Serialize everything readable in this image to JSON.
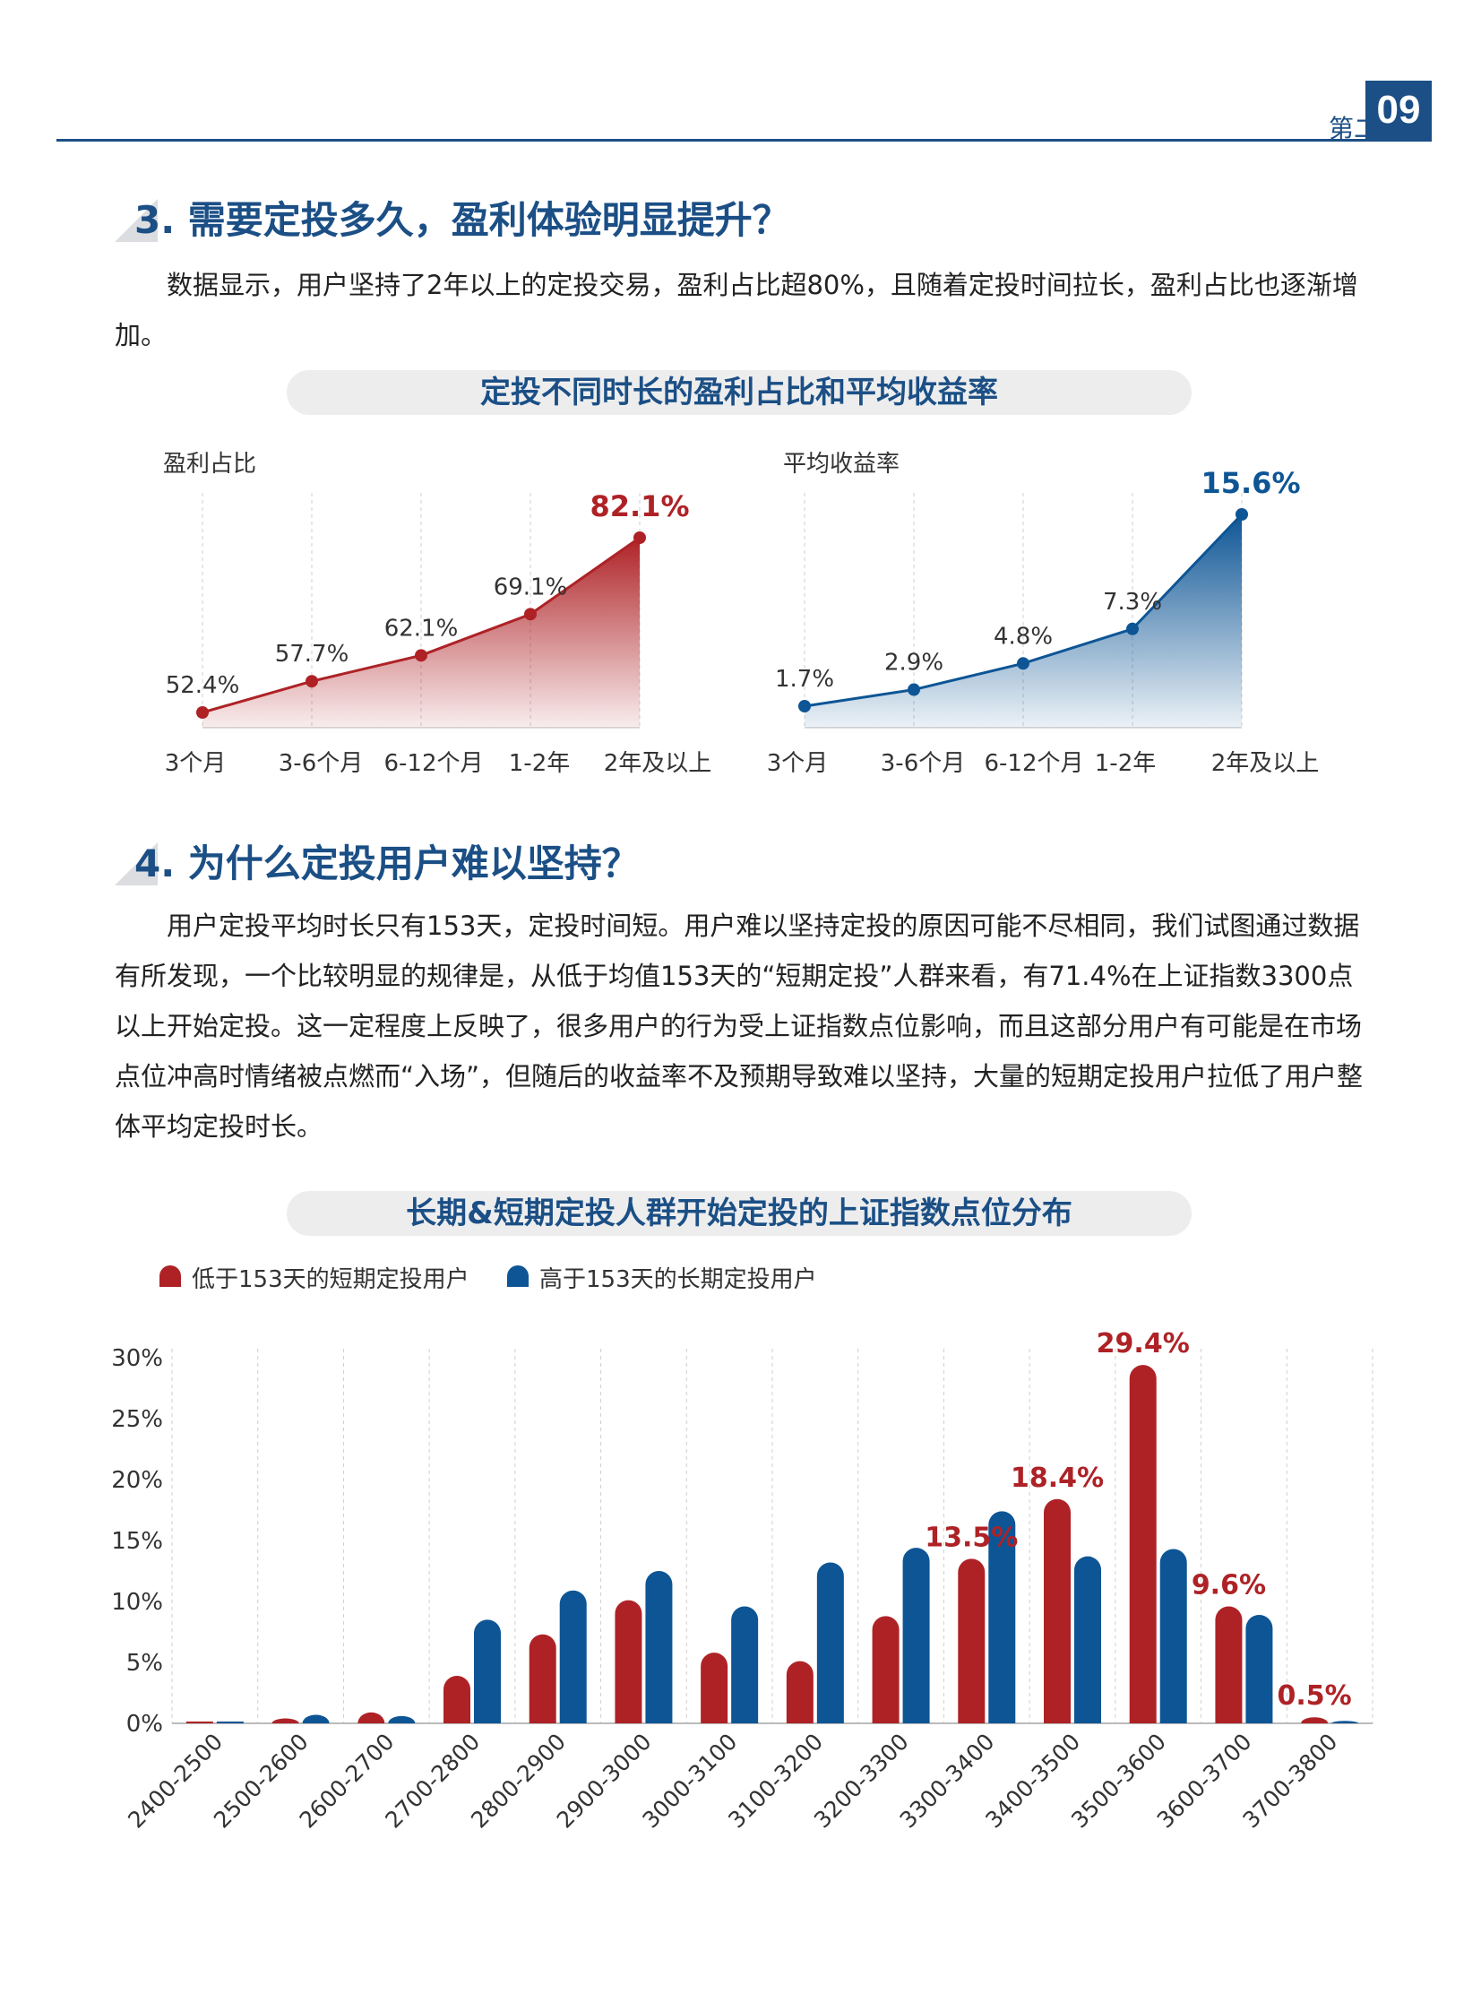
{
  "header": {
    "chapter": "第二章",
    "page_number": "09"
  },
  "section3": {
    "title": "3. 需要定投多久，盈利体验明显提升？",
    "para": "数据显示，用户坚持了2年以上的定投交易，盈利占比超80%，且随着定投时间拉长，盈利占比也逐渐增加。"
  },
  "chart1_title": "定投不同时长的盈利占比和平均收益率",
  "section4": {
    "title": "4. 为什么定投用户难以坚持？",
    "para": "用户定投平均时长只有153天，定投时间短。用户难以坚持定投的原因可能不尽相同，我们试图通过数据有所发现，一个比较明显的规律是，从低于均值153天的“短期定投”人群来看，有71.4%在上证指数3300点以上开始定投。这一定程度上反映了，很多用户的行为受上证指数点位影响，而且这部分用户有可能是在市场点位冲高时情绪被点燃而“入场”，但随后的收益率不及预期导致难以坚持，大量的短期定投用户拉低了用户整体平均定投时长。"
  },
  "chart2_title": "长期&短期定投人群开始定投的上证指数点位分布",
  "colors": {
    "red": "#ae2226",
    "blue": "#0d5595",
    "navy": "#1b4f85"
  },
  "chart_data": [
    {
      "type": "area",
      "ylabel": "盈利占比",
      "categories": [
        "3个月",
        "3-6个月",
        "6-12个月",
        "1-2年",
        "2年及以上"
      ],
      "values": [
        52.4,
        57.7,
        62.1,
        69.1,
        82.1
      ],
      "value_labels": [
        "52.4%",
        "57.7%",
        "62.1%",
        "69.1%",
        "82.1%"
      ],
      "color": "#ae2226"
    },
    {
      "type": "area",
      "ylabel": "平均收益率",
      "categories": [
        "3个月",
        "3-6个月",
        "6-12个月",
        "1-2年",
        "2年及以上"
      ],
      "values": [
        1.7,
        2.9,
        4.8,
        7.3,
        15.6
      ],
      "value_labels": [
        "1.7%",
        "2.9%",
        "4.8%",
        "7.3%",
        "15.6%"
      ],
      "color": "#0d5595"
    },
    {
      "type": "bar",
      "categories": [
        "2400-2500",
        "2500-2600",
        "2600-2700",
        "2700-2800",
        "2800-2900",
        "2900-3000",
        "3000-3100",
        "3100-3200",
        "3200-3300",
        "3300-3400",
        "3400-3500",
        "3500-3600",
        "3600-3700",
        "3700-3800"
      ],
      "series": [
        {
          "name": "低于153天的短期定投用户",
          "color": "#ae2226",
          "values": [
            0.0,
            0.4,
            0.9,
            3.9,
            7.3,
            10.1,
            5.8,
            5.1,
            8.8,
            13.5,
            18.4,
            29.4,
            9.6,
            0.5
          ]
        },
        {
          "name": "高于153天的长期定投用户",
          "color": "#0d5595",
          "values": [
            0.0,
            0.7,
            0.6,
            8.5,
            10.9,
            12.5,
            9.6,
            13.2,
            14.4,
            17.4,
            13.7,
            14.3,
            8.9,
            0.2
          ]
        }
      ],
      "annotations": [
        {
          "series": 0,
          "index": 9,
          "label": "13.5%"
        },
        {
          "series": 0,
          "index": 10,
          "label": "18.4%"
        },
        {
          "series": 0,
          "index": 11,
          "label": "29.4%"
        },
        {
          "series": 0,
          "index": 12,
          "label": "9.6%"
        },
        {
          "series": 0,
          "index": 13,
          "label": "0.5%"
        }
      ],
      "yticks": [
        "0%",
        "5%",
        "10%",
        "15%",
        "20%",
        "25%",
        "30%"
      ],
      "ylim": [
        0,
        30
      ],
      "grid": true,
      "legend": "top-left"
    }
  ]
}
